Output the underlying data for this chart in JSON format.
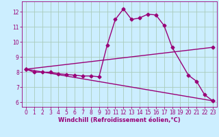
{
  "xlabel": "Windchill (Refroidissement éolien,°C)",
  "background_color": "#cceeff",
  "grid_color": "#aaccbb",
  "line_color": "#990077",
  "xlim": [
    -0.5,
    23.5
  ],
  "ylim": [
    5.7,
    12.7
  ],
  "yticks": [
    6,
    7,
    8,
    9,
    10,
    11,
    12
  ],
  "xticks": [
    0,
    1,
    2,
    3,
    4,
    5,
    6,
    7,
    8,
    9,
    10,
    11,
    12,
    13,
    14,
    15,
    16,
    17,
    18,
    19,
    20,
    21,
    22,
    23
  ],
  "curve1_x": [
    0,
    1,
    2,
    3,
    4,
    5,
    6,
    7,
    8,
    9,
    10,
    11,
    12,
    13,
    14,
    15,
    16,
    17,
    18,
    20,
    21,
    22,
    23
  ],
  "curve1_y": [
    8.2,
    8.0,
    8.0,
    8.0,
    7.9,
    7.85,
    7.8,
    7.75,
    7.75,
    7.7,
    9.8,
    11.5,
    12.2,
    11.5,
    11.6,
    11.85,
    11.8,
    11.1,
    9.65,
    7.8,
    7.4,
    6.5,
    6.1
  ],
  "curve2_x": [
    0,
    23
  ],
  "curve2_y": [
    8.2,
    9.65
  ],
  "curve3_x": [
    0,
    23
  ],
  "curve3_y": [
    8.2,
    6.1
  ],
  "marker": "D",
  "markersize": 2.5,
  "linewidth": 1.0,
  "tick_fontsize": 5.5,
  "label_fontsize": 6.0
}
